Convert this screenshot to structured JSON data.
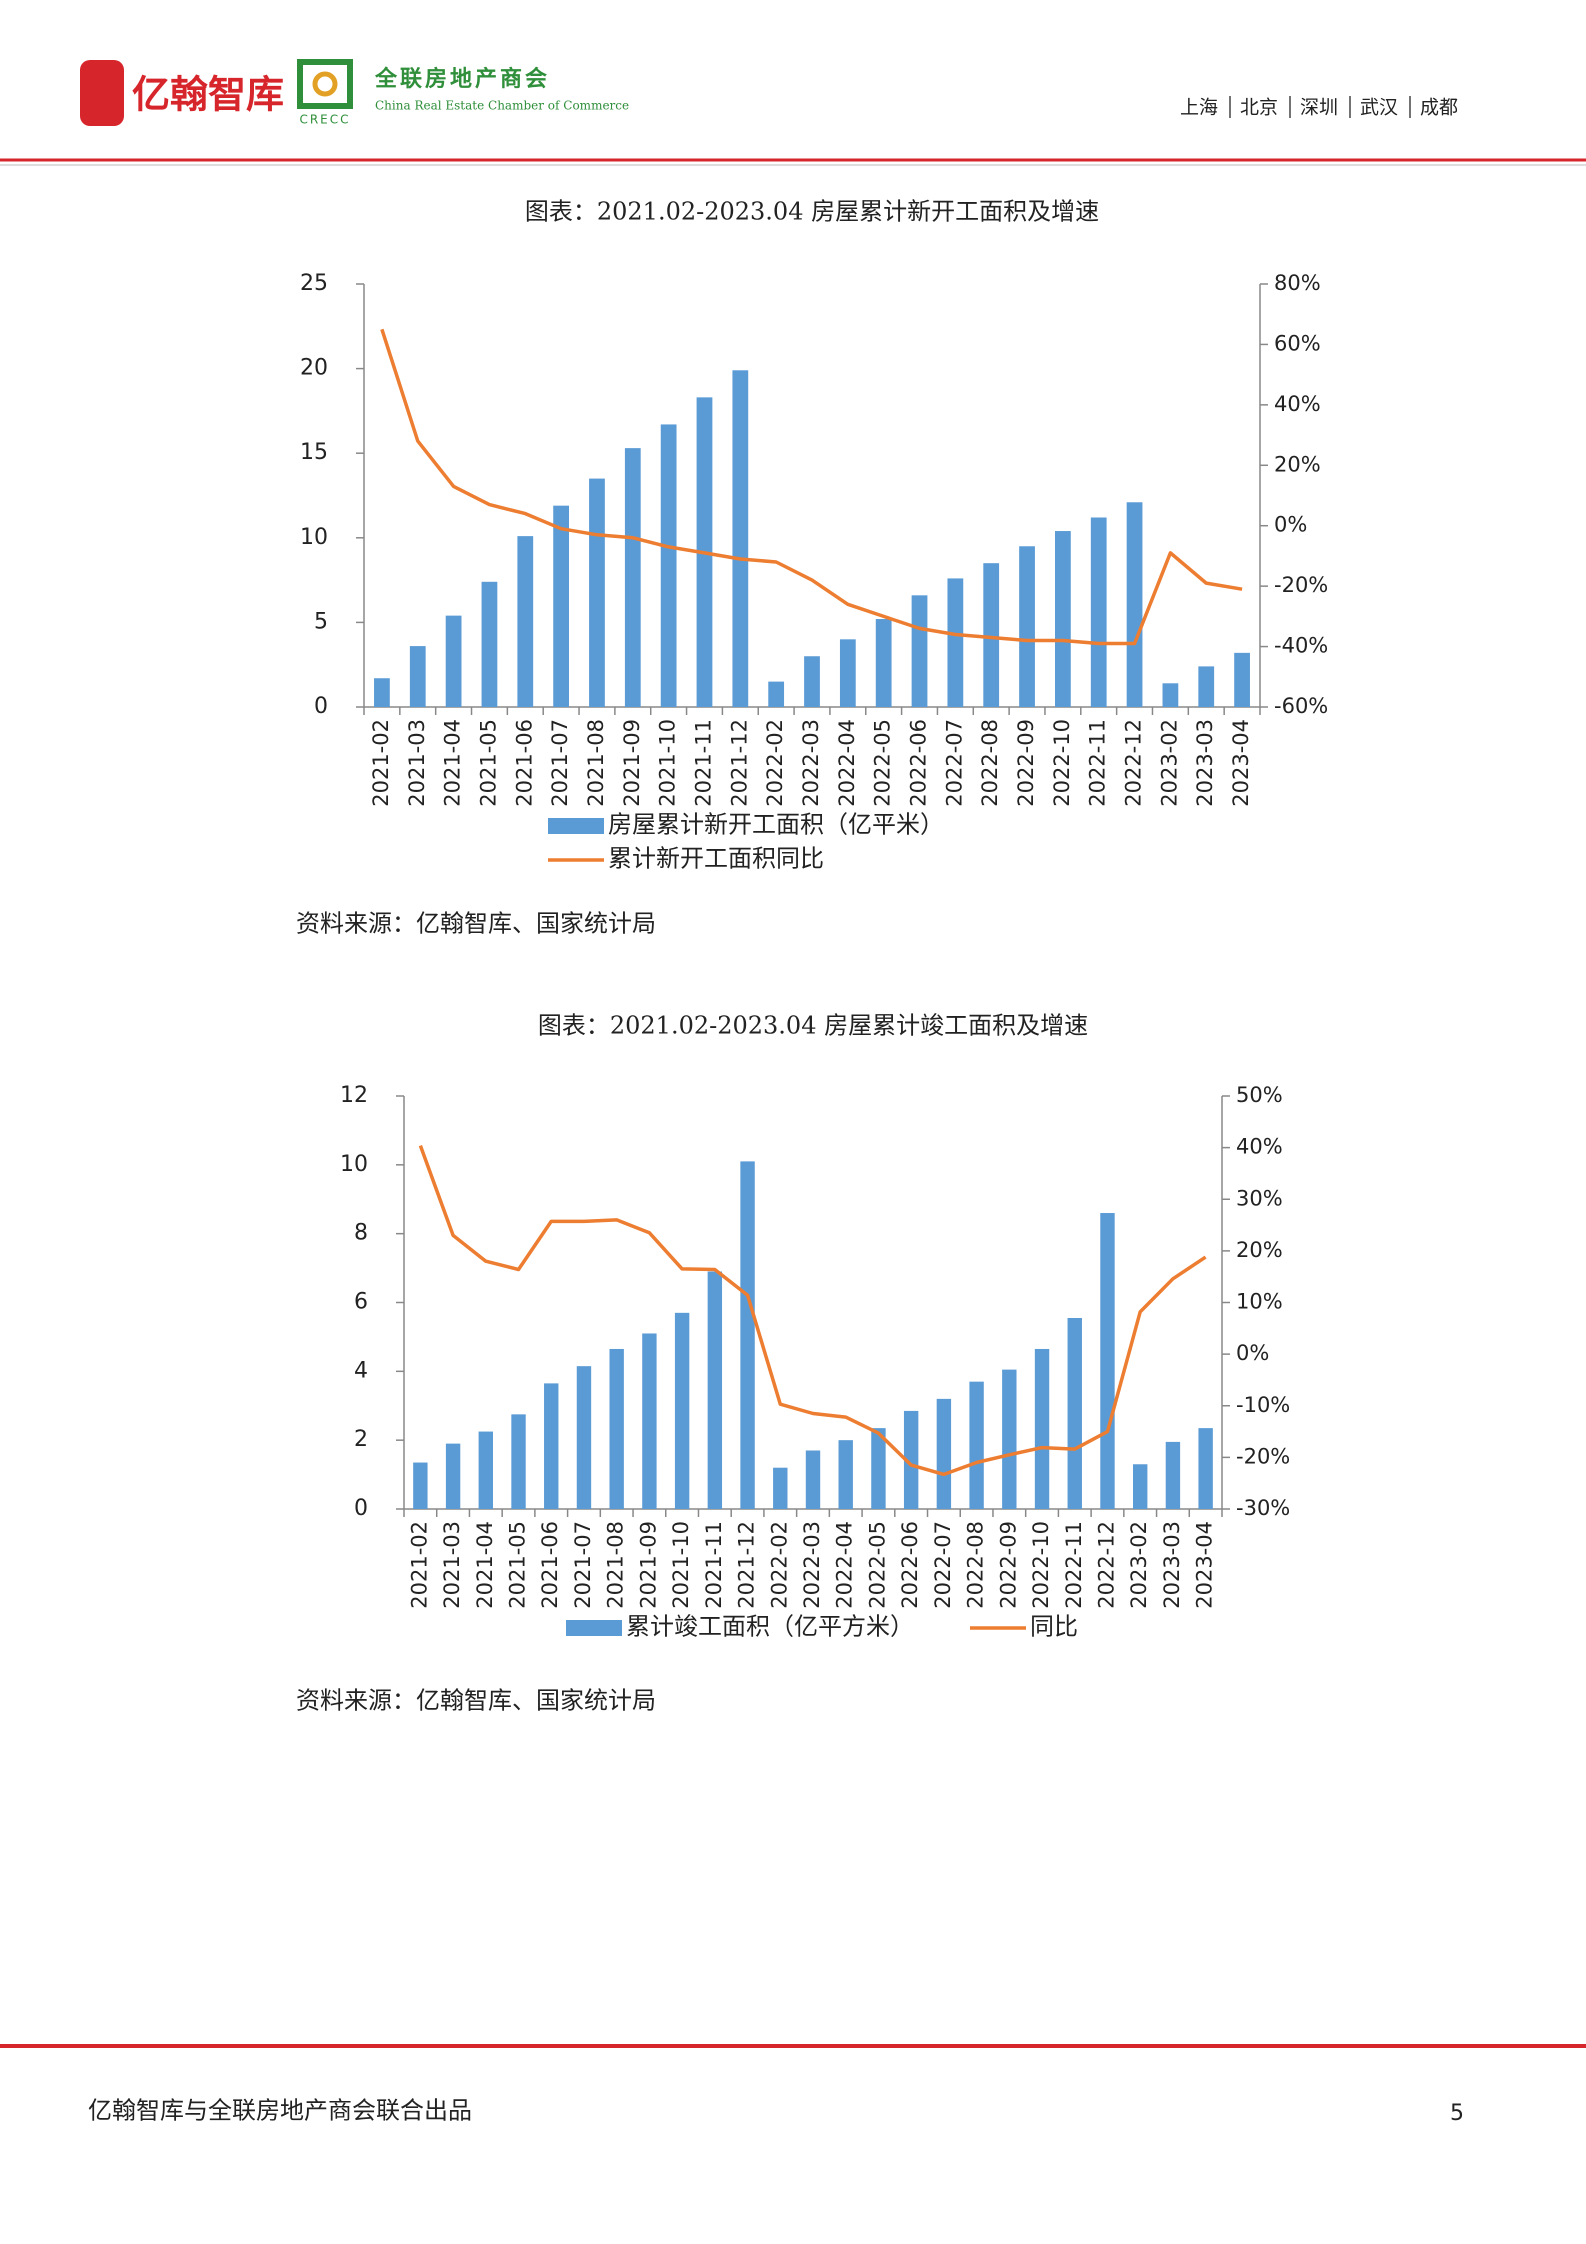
{
  "header": {
    "brand": "亿翰智库",
    "partner": "全联房地产商会",
    "partner_en": "China Real Estate Chamber of Commerce",
    "partner_abbr": "CRECC",
    "cities": [
      "上海",
      "北京",
      "深圳",
      "武汉",
      "成都"
    ]
  },
  "chart_data": [
    {
      "type": "bar_line",
      "title": "图表：2021.02-2023.04 房屋累计新开工面积及增速",
      "categories": [
        "2021-02",
        "2021-03",
        "2021-04",
        "2021-05",
        "2021-06",
        "2021-07",
        "2021-08",
        "2021-09",
        "2021-10",
        "2021-11",
        "2021-12",
        "2022-02",
        "2022-03",
        "2022-04",
        "2022-05",
        "2022-06",
        "2022-07",
        "2022-08",
        "2022-09",
        "2022-10",
        "2022-11",
        "2022-12",
        "2023-02",
        "2023-03",
        "2023-04"
      ],
      "series": [
        {
          "name": "房屋累计新开工面积（亿平米）",
          "color": "#5b9bd5",
          "type": "bar",
          "values": [
            1.7,
            3.6,
            5.4,
            7.4,
            10.1,
            11.9,
            13.5,
            15.3,
            16.7,
            18.3,
            19.9,
            1.5,
            3.0,
            4.0,
            5.2,
            6.6,
            7.6,
            8.5,
            9.5,
            10.4,
            11.2,
            12.1,
            1.4,
            2.4,
            3.2
          ]
        },
        {
          "name": "累计新开工面积同比",
          "color": "#ed7d31",
          "type": "line",
          "axis": "y2",
          "values": [
            65,
            28,
            13,
            7,
            4,
            -1,
            -3,
            -4,
            -7,
            -9,
            -11,
            -12,
            -18,
            -26,
            -30,
            -34,
            -36,
            -37,
            -38,
            -38,
            -39,
            -39,
            -9,
            -19,
            -21
          ]
        }
      ],
      "ylim": [
        0,
        25
      ],
      "yticks": [
        0,
        5,
        10,
        15,
        20,
        25
      ],
      "y2lim": [
        -60,
        80
      ],
      "y2ticks": [
        {
          "value": -60,
          "label": "-60%"
        },
        {
          "value": -40,
          "label": "-40%"
        },
        {
          "value": -20,
          "label": "-20%"
        },
        {
          "value": 0,
          "label": "0%"
        },
        {
          "value": 20,
          "label": "20%"
        },
        {
          "value": 40,
          "label": "40%"
        },
        {
          "value": 60,
          "label": "60%"
        },
        {
          "value": 80,
          "label": "80%"
        }
      ],
      "grid": false,
      "source": "资料来源：亿翰智库、国家统计局"
    },
    {
      "type": "bar_line",
      "title": "图表：2021.02-2023.04 房屋累计竣工面积及增速",
      "categories": [
        "2021-02",
        "2021-03",
        "2021-04",
        "2021-05",
        "2021-06",
        "2021-07",
        "2021-08",
        "2021-09",
        "2021-10",
        "2021-11",
        "2021-12",
        "2022-02",
        "2022-03",
        "2022-04",
        "2022-05",
        "2022-06",
        "2022-07",
        "2022-08",
        "2022-09",
        "2022-10",
        "2022-11",
        "2022-12",
        "2023-02",
        "2023-03",
        "2023-04"
      ],
      "series": [
        {
          "name": "累计竣工面积（亿平方米）",
          "color": "#5b9bd5",
          "type": "bar",
          "values": [
            1.35,
            1.9,
            2.25,
            2.75,
            3.65,
            4.15,
            4.65,
            5.1,
            5.7,
            6.9,
            10.1,
            1.2,
            1.7,
            2.0,
            2.35,
            2.85,
            3.2,
            3.7,
            4.05,
            4.65,
            5.55,
            8.6,
            1.3,
            1.95,
            2.35
          ]
        },
        {
          "name": "同比",
          "color": "#ed7d31",
          "type": "line",
          "axis": "y2",
          "values": [
            40.4,
            23,
            18,
            16.4,
            25.7,
            25.7,
            26,
            23.5,
            16.5,
            16.4,
            11.4,
            -9.7,
            -11.5,
            -12.2,
            -15.3,
            -21.5,
            -23.3,
            -21,
            -19.5,
            -18.1,
            -18.4,
            -15,
            8.2,
            14.6,
            18.8
          ]
        }
      ],
      "ylim": [
        0,
        12
      ],
      "yticks": [
        0,
        2,
        4,
        6,
        8,
        10,
        12
      ],
      "y2lim": [
        -30,
        50
      ],
      "y2ticks": [
        {
          "value": -30,
          "label": "-30%"
        },
        {
          "value": -20,
          "label": "-20%"
        },
        {
          "value": -10,
          "label": "-10%"
        },
        {
          "value": 0,
          "label": "0%"
        },
        {
          "value": 10,
          "label": "10%"
        },
        {
          "value": 20,
          "label": "20%"
        },
        {
          "value": 30,
          "label": "30%"
        },
        {
          "value": 40,
          "label": "40%"
        },
        {
          "value": 50,
          "label": "50%"
        }
      ],
      "grid": false,
      "source": "资料来源：亿翰智库、国家统计局"
    }
  ],
  "footer": {
    "text": "亿翰智库与全联房地产商会联合出品",
    "page": "5"
  }
}
